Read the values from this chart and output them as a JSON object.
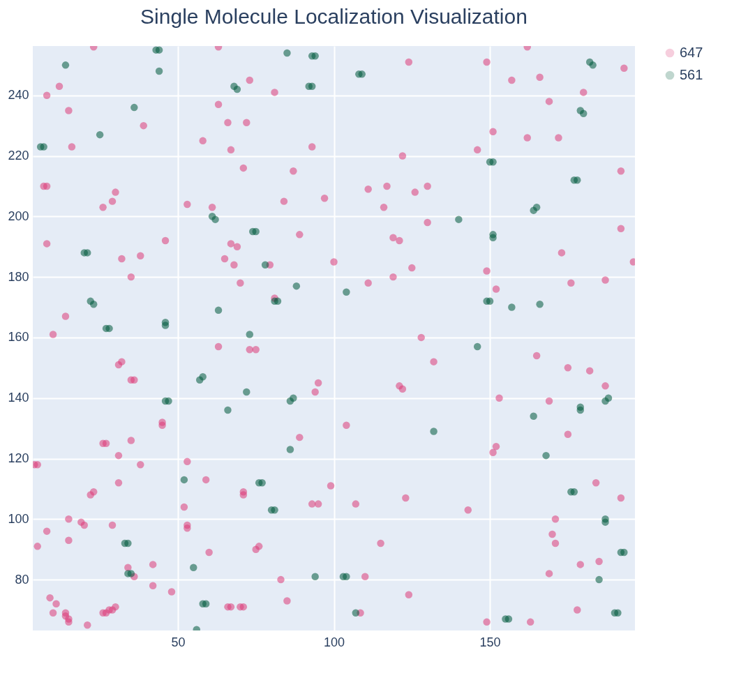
{
  "chart_data": {
    "type": "scatter",
    "title": "Single Molecule Localization Visualization",
    "xlim": [
      3.5,
      196.5
    ],
    "ylim": [
      63.2,
      256.3
    ],
    "xticks": [
      50,
      100,
      150
    ],
    "yticks": [
      80,
      100,
      120,
      140,
      160,
      180,
      200,
      220,
      240
    ],
    "grid": true,
    "legend": "top right",
    "marker": "circle",
    "series": [
      {
        "name": "647",
        "color": "#dc3c78",
        "x": [
          23,
          63,
          162,
          12,
          8,
          15,
          16,
          39,
          58,
          63,
          66,
          67,
          73,
          72,
          81,
          93,
          124,
          149,
          151,
          157,
          162,
          166,
          169,
          172,
          180,
          146,
          193,
          192,
          7,
          8,
          30,
          29,
          26,
          53,
          61,
          71,
          87,
          84,
          97,
          111,
          117,
          116,
          126,
          130,
          122,
          130,
          8,
          46,
          38,
          32,
          67,
          69,
          65,
          68,
          70,
          79.5,
          89,
          100,
          119,
          121,
          125,
          111,
          119,
          149,
          152,
          173,
          176,
          187,
          192,
          196,
          35,
          10,
          14,
          31,
          32,
          73,
          75,
          63,
          81,
          128,
          132,
          165,
          175,
          182,
          187,
          169,
          153,
          121,
          122,
          95,
          94,
          35,
          36,
          45,
          45,
          27,
          26,
          35,
          31,
          4,
          5,
          38,
          53,
          31,
          59,
          71,
          71,
          52,
          22,
          23,
          89,
          104,
          99,
          93,
          95,
          107,
          123,
          151,
          152,
          175,
          184,
          192,
          143,
          5,
          8,
          15,
          19,
          20,
          15,
          29,
          53,
          53,
          60,
          75,
          76,
          70,
          71,
          66,
          67,
          48,
          42,
          42,
          36,
          34,
          14,
          14,
          15,
          15,
          10,
          11,
          9,
          26,
          27,
          28,
          29,
          30,
          21,
          83,
          85,
          108.5,
          110,
          115,
          124,
          149,
          163,
          169,
          170,
          171,
          171,
          178,
          179,
          185
        ],
        "values": [
          256,
          256,
          256,
          243,
          240,
          235,
          223,
          230,
          225,
          237,
          231,
          222,
          245,
          231,
          241,
          223,
          251,
          251,
          228,
          245,
          226,
          246,
          238,
          226,
          241,
          222,
          249,
          215,
          210,
          210,
          208,
          205,
          203,
          204,
          203,
          216,
          215,
          205,
          206,
          209,
          210,
          203,
          208,
          210,
          220,
          198,
          191,
          192,
          187,
          186,
          191,
          190,
          186,
          184,
          178,
          184,
          194,
          185,
          193,
          192,
          183,
          178,
          180,
          182,
          176,
          188,
          178,
          179,
          196,
          185,
          180,
          161,
          167,
          151,
          152,
          156,
          156,
          157,
          173,
          160,
          152,
          154,
          150,
          149,
          144,
          139,
          140,
          144,
          143,
          145,
          142,
          146,
          146,
          132,
          131,
          125,
          125,
          126,
          121,
          118,
          118,
          118,
          119,
          112,
          113,
          109,
          108,
          104,
          108,
          109,
          127,
          131,
          111,
          105,
          105,
          105,
          107,
          122,
          124,
          128,
          112,
          107,
          103,
          91,
          96,
          100,
          99,
          98,
          93,
          98,
          98,
          97,
          89,
          90,
          91,
          71,
          71,
          71,
          71,
          76,
          85,
          78,
          81,
          84,
          69,
          68,
          67,
          66,
          69,
          72,
          74,
          69,
          69,
          70,
          70,
          71,
          65,
          80,
          73,
          69,
          81,
          92,
          75,
          66,
          66,
          82,
          95,
          92,
          100,
          70,
          85,
          86
        ]
      },
      {
        "name": "561",
        "color": "#005a3c",
        "x": [
          43,
          44,
          44,
          14,
          85,
          93,
          94,
          109,
          108,
          182,
          183,
          6,
          7,
          25,
          36,
          68,
          69,
          92,
          93,
          150,
          151,
          177,
          178,
          179,
          180,
          20,
          21,
          61,
          62,
          75,
          74,
          78,
          140,
          151,
          151,
          165,
          164,
          22,
          23,
          28,
          27,
          46,
          46,
          63,
          73,
          81,
          82,
          88,
          104,
          149,
          150,
          157,
          166,
          146,
          47,
          46,
          58,
          57,
          66,
          72,
          87,
          86,
          132,
          164,
          168,
          179,
          179,
          188,
          187,
          176,
          177,
          52,
          77,
          76,
          86,
          80,
          81,
          187,
          187,
          33,
          34,
          34,
          35,
          55,
          58,
          59,
          94,
          103,
          104,
          107,
          155,
          156,
          185,
          190,
          191,
          192,
          193,
          56
        ],
        "values": [
          255,
          255,
          248,
          250,
          254,
          253,
          253,
          247,
          247,
          251,
          250,
          223,
          223,
          227,
          236,
          243,
          242,
          243,
          243,
          218,
          218,
          212,
          212,
          235,
          234,
          188,
          188,
          200,
          199,
          195,
          195,
          184,
          199,
          194,
          193,
          203,
          202,
          172,
          171,
          163,
          163,
          165,
          164,
          169,
          161,
          172,
          172,
          177,
          175,
          172,
          172,
          170,
          171,
          157,
          139,
          139,
          147,
          146,
          136,
          142,
          140,
          139,
          129,
          134,
          121,
          137,
          136,
          140,
          139,
          109,
          109,
          113,
          112,
          112,
          123,
          103,
          103,
          100,
          99,
          92,
          92,
          82,
          82,
          84,
          72,
          72,
          81,
          81,
          81,
          69,
          67,
          67,
          80,
          69,
          69,
          89,
          89,
          63.5
        ]
      }
    ]
  }
}
